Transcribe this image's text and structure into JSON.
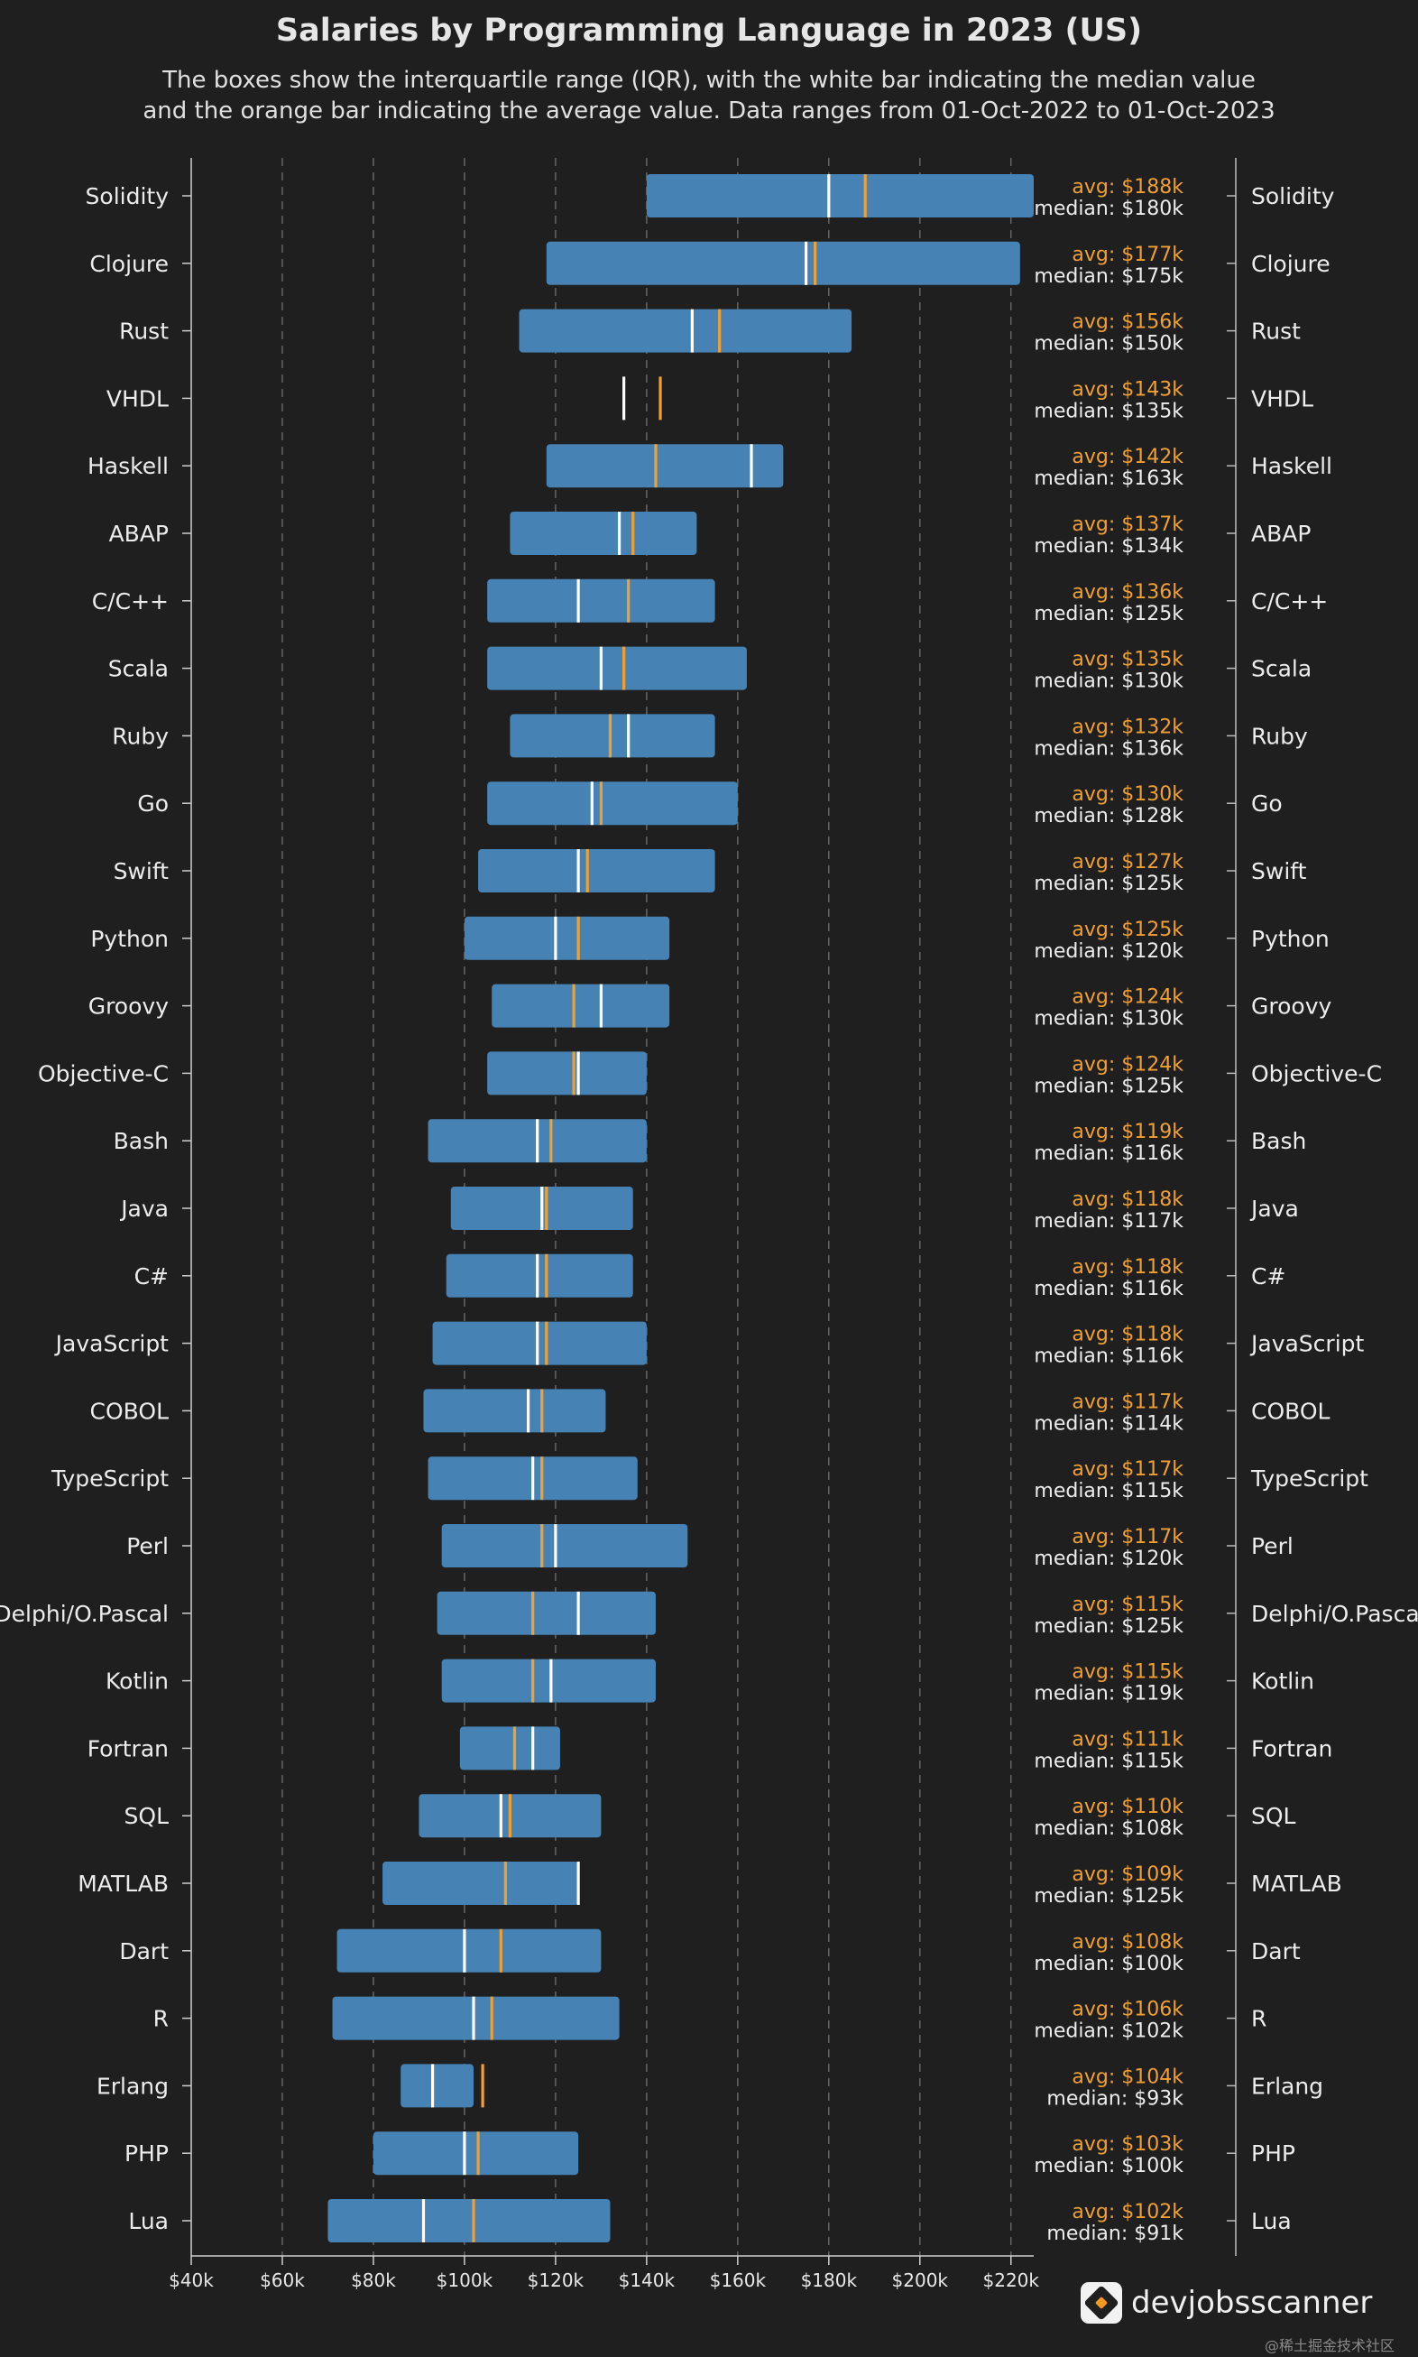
{
  "title": "Salaries by Programming Language in 2023 (US)",
  "subtitle_line1": "The boxes show the interquartile range (IQR), with the white bar indicating the median value",
  "subtitle_line2": "and the orange bar indicating the average value. Data ranges from 01-Oct-2022 to 01-Oct-2023",
  "brand": "devjobsscanner",
  "watermark": "@稀土掘金技术社区",
  "colors": {
    "box": "#4682b4",
    "median": "#ffffff",
    "average": "#f0a033",
    "background": "#1f1f1f",
    "grid": "#6a6a6a"
  },
  "chart_data": {
    "type": "boxplot",
    "title": "Salaries by Programming Language in 2023 (US)",
    "xlim": [
      40000,
      225000
    ],
    "x_ticks": [
      40000,
      60000,
      80000,
      100000,
      120000,
      140000,
      160000,
      180000,
      200000,
      220000
    ],
    "x_tick_labels": [
      "$40k",
      "$60k",
      "$80k",
      "$100k",
      "$120k",
      "$140k",
      "$160k",
      "$180k",
      "$200k",
      "$220k"
    ],
    "grid": "vertical dashed",
    "rows": [
      {
        "language": "Solidity",
        "q1": 140000,
        "q3": 225000,
        "median": 180000,
        "avg": 188000,
        "avg_label": "avg: $188k",
        "median_label": "median: $180k"
      },
      {
        "language": "Clojure",
        "q1": 118000,
        "q3": 222000,
        "median": 175000,
        "avg": 177000,
        "avg_label": "avg: $177k",
        "median_label": "median: $175k"
      },
      {
        "language": "Rust",
        "q1": 112000,
        "q3": 185000,
        "median": 150000,
        "avg": 156000,
        "avg_label": "avg: $156k",
        "median_label": "median: $150k"
      },
      {
        "language": "VHDL",
        "q1": null,
        "q3": null,
        "median": 135000,
        "avg": 143000,
        "avg_label": "avg: $143k",
        "median_label": "median: $135k"
      },
      {
        "language": "Haskell",
        "q1": 118000,
        "q3": 170000,
        "median": 163000,
        "avg": 142000,
        "avg_label": "avg: $142k",
        "median_label": "median: $163k"
      },
      {
        "language": "ABAP",
        "q1": 110000,
        "q3": 151000,
        "median": 134000,
        "avg": 137000,
        "avg_label": "avg: $137k",
        "median_label": "median: $134k"
      },
      {
        "language": "C/C++",
        "q1": 105000,
        "q3": 155000,
        "median": 125000,
        "avg": 136000,
        "avg_label": "avg: $136k",
        "median_label": "median: $125k"
      },
      {
        "language": "Scala",
        "q1": 105000,
        "q3": 162000,
        "median": 130000,
        "avg": 135000,
        "avg_label": "avg: $135k",
        "median_label": "median: $130k"
      },
      {
        "language": "Ruby",
        "q1": 110000,
        "q3": 155000,
        "median": 136000,
        "avg": 132000,
        "avg_label": "avg: $132k",
        "median_label": "median: $136k"
      },
      {
        "language": "Go",
        "q1": 105000,
        "q3": 160000,
        "median": 128000,
        "avg": 130000,
        "avg_label": "avg: $130k",
        "median_label": "median: $128k"
      },
      {
        "language": "Swift",
        "q1": 103000,
        "q3": 155000,
        "median": 125000,
        "avg": 127000,
        "avg_label": "avg: $127k",
        "median_label": "median: $125k"
      },
      {
        "language": "Python",
        "q1": 100000,
        "q3": 145000,
        "median": 120000,
        "avg": 125000,
        "avg_label": "avg: $125k",
        "median_label": "median: $120k"
      },
      {
        "language": "Groovy",
        "q1": 106000,
        "q3": 145000,
        "median": 130000,
        "avg": 124000,
        "avg_label": "avg: $124k",
        "median_label": "median: $130k"
      },
      {
        "language": "Objective-C",
        "q1": 105000,
        "q3": 140000,
        "median": 125000,
        "avg": 124000,
        "avg_label": "avg: $124k",
        "median_label": "median: $125k"
      },
      {
        "language": "Bash",
        "q1": 92000,
        "q3": 140000,
        "median": 116000,
        "avg": 119000,
        "avg_label": "avg: $119k",
        "median_label": "median: $116k"
      },
      {
        "language": "Java",
        "q1": 97000,
        "q3": 137000,
        "median": 117000,
        "avg": 118000,
        "avg_label": "avg: $118k",
        "median_label": "median: $117k"
      },
      {
        "language": "C#",
        "q1": 96000,
        "q3": 137000,
        "median": 116000,
        "avg": 118000,
        "avg_label": "avg: $118k",
        "median_label": "median: $116k"
      },
      {
        "language": "JavaScript",
        "q1": 93000,
        "q3": 140000,
        "median": 116000,
        "avg": 118000,
        "avg_label": "avg: $118k",
        "median_label": "median: $116k"
      },
      {
        "language": "COBOL",
        "q1": 91000,
        "q3": 131000,
        "median": 114000,
        "avg": 117000,
        "avg_label": "avg: $117k",
        "median_label": "median: $114k"
      },
      {
        "language": "TypeScript",
        "q1": 92000,
        "q3": 138000,
        "median": 115000,
        "avg": 117000,
        "avg_label": "avg: $117k",
        "median_label": "median: $115k"
      },
      {
        "language": "Perl",
        "q1": 95000,
        "q3": 149000,
        "median": 120000,
        "avg": 117000,
        "avg_label": "avg: $117k",
        "median_label": "median: $120k"
      },
      {
        "language": "Delphi/O.Pascal",
        "q1": 94000,
        "q3": 142000,
        "median": 125000,
        "avg": 115000,
        "avg_label": "avg: $115k",
        "median_label": "median: $125k"
      },
      {
        "language": "Kotlin",
        "q1": 95000,
        "q3": 142000,
        "median": 119000,
        "avg": 115000,
        "avg_label": "avg: $115k",
        "median_label": "median: $119k"
      },
      {
        "language": "Fortran",
        "q1": 99000,
        "q3": 121000,
        "median": 115000,
        "avg": 111000,
        "avg_label": "avg: $111k",
        "median_label": "median: $115k"
      },
      {
        "language": "SQL",
        "q1": 90000,
        "q3": 130000,
        "median": 108000,
        "avg": 110000,
        "avg_label": "avg: $110k",
        "median_label": "median: $108k"
      },
      {
        "language": "MATLAB",
        "q1": 82000,
        "q3": 125000,
        "median": 125000,
        "avg": 109000,
        "avg_label": "avg: $109k",
        "median_label": "median: $125k"
      },
      {
        "language": "Dart",
        "q1": 72000,
        "q3": 130000,
        "median": 100000,
        "avg": 108000,
        "avg_label": "avg: $108k",
        "median_label": "median: $100k"
      },
      {
        "language": "R",
        "q1": 71000,
        "q3": 134000,
        "median": 102000,
        "avg": 106000,
        "avg_label": "avg: $106k",
        "median_label": "median: $102k"
      },
      {
        "language": "Erlang",
        "q1": 86000,
        "q3": 102000,
        "median": 93000,
        "avg": 104000,
        "avg_label": "avg: $104k",
        "median_label": "median: $93k"
      },
      {
        "language": "PHP",
        "q1": 80000,
        "q3": 125000,
        "median": 100000,
        "avg": 103000,
        "avg_label": "avg: $103k",
        "median_label": "median: $100k"
      },
      {
        "language": "Lua",
        "q1": 70000,
        "q3": 132000,
        "median": 91000,
        "avg": 102000,
        "avg_label": "avg: $102k",
        "median_label": "median: $91k"
      }
    ]
  }
}
